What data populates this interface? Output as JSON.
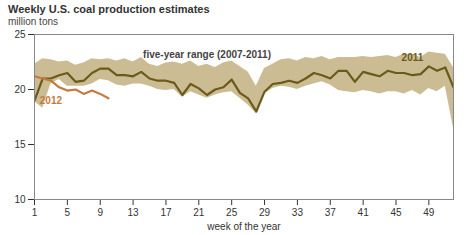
{
  "chart_data": {
    "type": "line",
    "title": "Weekly U.S. coal production estimates",
    "subtitle": "million tons",
    "x_label": "week of the year",
    "x": [
      1,
      2,
      3,
      4,
      5,
      6,
      7,
      8,
      9,
      10,
      11,
      12,
      13,
      14,
      15,
      16,
      17,
      18,
      19,
      20,
      21,
      22,
      23,
      24,
      25,
      26,
      27,
      28,
      29,
      30,
      31,
      32,
      33,
      34,
      35,
      36,
      37,
      38,
      39,
      40,
      41,
      42,
      43,
      44,
      45,
      46,
      47,
      48,
      49,
      50,
      51,
      52
    ],
    "xlim": [
      1,
      52
    ],
    "xticks": [
      1,
      5,
      9,
      13,
      17,
      21,
      25,
      29,
      33,
      37,
      41,
      45,
      49
    ],
    "ylim": [
      10,
      25
    ],
    "yticks": [
      10,
      15,
      20,
      25
    ],
    "grid": false,
    "series": [
      {
        "name": "five-year range (2007-2011)",
        "type": "area",
        "color": "#cbbc94",
        "low": [
          18.9,
          18.3,
          20.5,
          20.9,
          20.3,
          20.3,
          20.3,
          20.5,
          20.9,
          20.8,
          20.4,
          20.3,
          20.5,
          20.5,
          20.3,
          20.0,
          19.9,
          20.0,
          19.3,
          19.8,
          19.5,
          19.2,
          19.5,
          19.7,
          19.8,
          19.2,
          18.6,
          17.8,
          19.6,
          20.1,
          20.3,
          20.2,
          20.0,
          20.3,
          20.5,
          20.7,
          20.4,
          19.9,
          19.8,
          19.7,
          19.9,
          19.8,
          19.6,
          19.8,
          19.8,
          19.6,
          19.9,
          19.5,
          20.1,
          19.8,
          20.3,
          16.5
        ],
        "high": [
          22.3,
          22.8,
          22.7,
          22.5,
          22.6,
          22.2,
          22.4,
          22.8,
          22.7,
          22.8,
          22.6,
          22.8,
          22.5,
          22.9,
          22.3,
          22.1,
          22.4,
          22.5,
          22.3,
          22.6,
          22.1,
          22.3,
          22.0,
          22.4,
          22.6,
          22.1,
          21.6,
          20.3,
          21.9,
          22.3,
          22.7,
          22.8,
          22.6,
          22.9,
          22.8,
          23.0,
          22.7,
          22.9,
          22.9,
          22.9,
          23.0,
          22.9,
          23.0,
          23.1,
          22.9,
          23.2,
          23.2,
          22.9,
          23.4,
          23.3,
          23.2,
          22.0
        ]
      },
      {
        "name": "2011",
        "type": "line",
        "color": "#6b5a1a",
        "values": [
          19.0,
          21.0,
          21.0,
          21.3,
          21.5,
          20.7,
          20.8,
          21.5,
          21.9,
          21.9,
          21.3,
          21.3,
          21.2,
          21.6,
          21.0,
          20.8,
          20.8,
          20.6,
          19.5,
          20.5,
          20.1,
          19.5,
          20.0,
          20.2,
          20.9,
          19.7,
          19.2,
          18.0,
          19.8,
          20.5,
          20.6,
          20.8,
          20.6,
          21.0,
          21.5,
          21.3,
          21.0,
          21.7,
          21.7,
          20.7,
          21.6,
          21.4,
          21.2,
          21.7,
          21.5,
          21.5,
          21.3,
          21.4,
          22.1,
          21.7,
          22.0,
          20.2
        ]
      },
      {
        "name": "2012",
        "type": "line",
        "color": "#c47a3e",
        "values": [
          21.2,
          21.0,
          20.8,
          20.2,
          19.9,
          20.0,
          19.6,
          19.9,
          19.6,
          19.2,
          null,
          null,
          null,
          null,
          null,
          null,
          null,
          null,
          null,
          null,
          null,
          null,
          null,
          null,
          null,
          null,
          null,
          null,
          null,
          null,
          null,
          null,
          null,
          null,
          null,
          null,
          null,
          null,
          null,
          null,
          null,
          null,
          null,
          null,
          null,
          null,
          null,
          null,
          null,
          null,
          null,
          null
        ]
      }
    ]
  }
}
